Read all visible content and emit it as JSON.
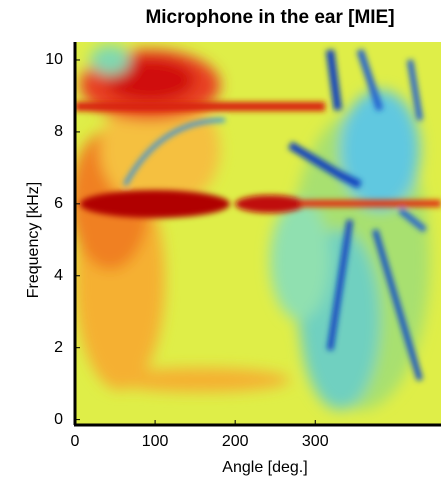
{
  "chart_data": {
    "type": "heatmap",
    "title": "Microphone in the ear [MIE]",
    "x_label": "Angle [deg.]",
    "y_label": "Frequency [kHz]",
    "xlim": [
      0,
      457
    ],
    "ylim": [
      -0.15,
      10.5
    ],
    "xticks": [
      0,
      100,
      200,
      300
    ],
    "yticks": [
      0,
      2,
      4,
      6,
      8,
      10
    ]
  }
}
